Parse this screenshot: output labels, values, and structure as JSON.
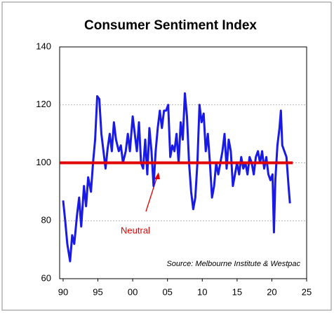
{
  "chart_data": {
    "type": "line",
    "title": "Consumer Sentiment Index",
    "source": "Source: Melbourne Institute & Westpac",
    "x": [
      1990.0,
      1990.3,
      1990.6,
      1991.0,
      1991.3,
      1991.6,
      1992.0,
      1992.3,
      1992.6,
      1993.0,
      1993.3,
      1993.6,
      1994.0,
      1994.3,
      1994.6,
      1994.9,
      1995.2,
      1995.5,
      1995.8,
      1996.1,
      1996.4,
      1996.7,
      1997.0,
      1997.3,
      1997.6,
      1998.0,
      1998.3,
      1998.6,
      1999.0,
      1999.3,
      1999.6,
      2000.0,
      2000.3,
      2000.6,
      2000.9,
      2001.2,
      2001.5,
      2001.8,
      2002.1,
      2002.4,
      2002.7,
      2003.0,
      2003.3,
      2003.6,
      2003.9,
      2004.2,
      2004.5,
      2004.8,
      2005.1,
      2005.4,
      2005.7,
      2006.0,
      2006.3,
      2006.6,
      2006.9,
      2007.2,
      2007.5,
      2007.8,
      2008.1,
      2008.4,
      2008.7,
      2009.0,
      2009.3,
      2009.6,
      2009.9,
      2010.2,
      2010.5,
      2010.8,
      2011.1,
      2011.4,
      2011.7,
      2012.0,
      2012.3,
      2012.6,
      2012.9,
      2013.2,
      2013.5,
      2013.8,
      2014.1,
      2014.4,
      2014.7,
      2015.0,
      2015.3,
      2015.6,
      2015.9,
      2016.2,
      2016.5,
      2016.8,
      2017.1,
      2017.4,
      2017.7,
      2018.0,
      2018.3,
      2018.6,
      2018.9,
      2019.2,
      2019.5,
      2019.8,
      2020.1,
      2020.3,
      2020.5,
      2020.8,
      2021.1,
      2021.3,
      2021.5,
      2021.8,
      2022.1,
      2022.4,
      2022.6
    ],
    "series": [
      {
        "color": "#1a1ae6",
        "values": [
          87,
          80,
          72,
          66,
          75,
          72,
          82,
          88,
          78,
          92,
          85,
          95,
          90,
          100,
          108,
          123,
          122,
          110,
          104,
          98,
          105,
          110,
          104,
          114,
          108,
          104,
          106,
          100,
          104,
          110,
          104,
          116,
          110,
          104,
          114,
          100,
          98,
          108,
          96,
          112,
          104,
          92,
          104,
          112,
          118,
          112,
          118,
          118,
          120,
          102,
          106,
          104,
          110,
          100,
          114,
          108,
          124,
          116,
          100,
          90,
          84,
          88,
          100,
          120,
          114,
          117,
          104,
          110,
          100,
          88,
          92,
          100,
          96,
          100,
          104,
          110,
          98,
          108,
          104,
          92,
          96,
          100,
          96,
          102,
          98,
          100,
          96,
          102,
          100,
          96,
          102,
          104,
          100,
          104,
          98,
          102,
          96,
          94,
          96,
          76,
          94,
          106,
          112,
          118,
          106,
          104,
          102,
          92,
          86
        ]
      }
    ],
    "neutral": {
      "value": 100,
      "label": "Neutral",
      "color": "#e00000",
      "xlim": [
        1989.5,
        2023
      ]
    },
    "xlim": [
      1989.5,
      2025
    ],
    "xticks": [
      {
        "value": 1990,
        "label": "90"
      },
      {
        "value": 1995,
        "label": "95"
      },
      {
        "value": 2000,
        "label": "00"
      },
      {
        "value": 2005,
        "label": "05"
      },
      {
        "value": 2010,
        "label": "10"
      },
      {
        "value": 2015,
        "label": "15"
      },
      {
        "value": 2020,
        "label": "20"
      },
      {
        "value": 2025,
        "label": "25"
      }
    ],
    "ylim": [
      60,
      140
    ],
    "yticks": [
      60,
      80,
      100,
      120,
      140
    ],
    "grid": true
  }
}
